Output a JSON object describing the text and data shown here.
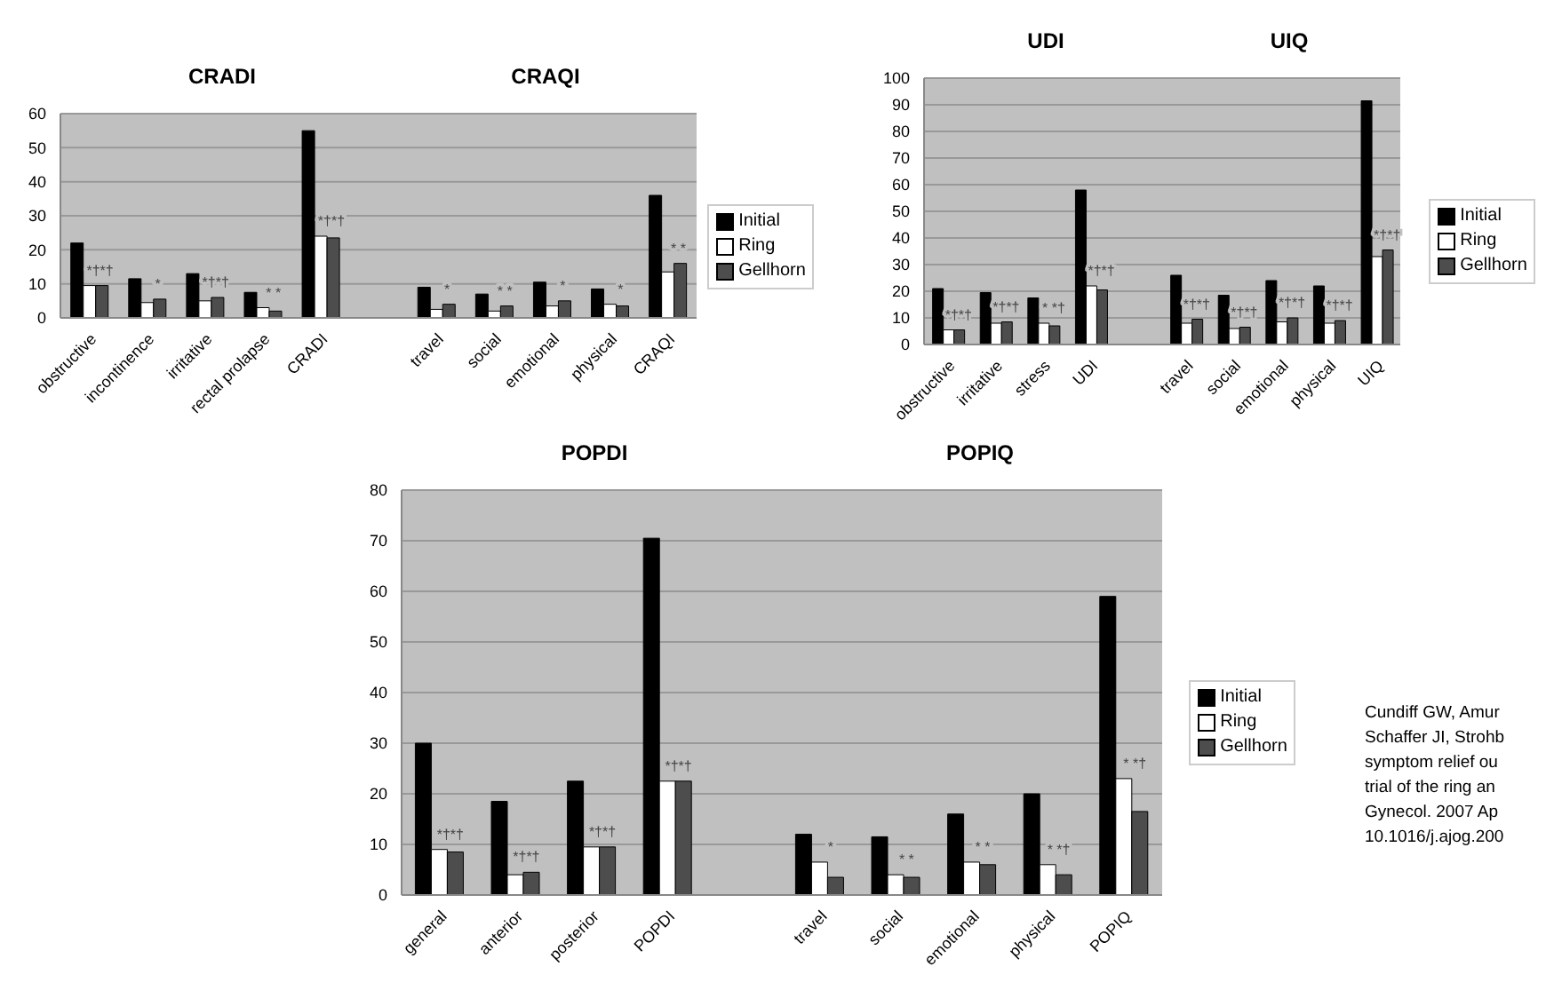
{
  "chart_data": [
    {
      "type": "bar",
      "title": "CRADI",
      "subtitle": "CRAQI",
      "categories": [
        "obstructive",
        "incontinence",
        "irritative",
        "rectal prolapse",
        "CRADI",
        null,
        "travel",
        "social",
        "emotional",
        "physical",
        "CRAQI"
      ],
      "series": [
        {
          "name": "Initial",
          "color": "#000000",
          "values": [
            22,
            11.5,
            13,
            7.5,
            55,
            null,
            9,
            7,
            10.5,
            8.5,
            36
          ]
        },
        {
          "name": "Ring",
          "color": "#ffffff",
          "values": [
            9.5,
            4.5,
            5,
            3,
            24,
            null,
            2.5,
            2,
            3.5,
            4,
            13.5
          ]
        },
        {
          "name": "Gellhorn",
          "color": "#4d4d4d",
          "values": [
            9.5,
            5.5,
            6,
            2,
            23.5,
            null,
            4,
            3.5,
            5,
            3.5,
            16
          ]
        }
      ],
      "ylim": [
        0,
        60
      ],
      "yticks": [
        0,
        10,
        20,
        30,
        40,
        50,
        60
      ],
      "grid": "y",
      "legend": "right",
      "annotations": [
        "*†*†",
        "*",
        "*†*†",
        "* *",
        "*†*†",
        "*",
        "* *",
        "*",
        "*",
        "* *"
      ]
    },
    {
      "type": "bar",
      "title": "UDI",
      "subtitle": "UIQ",
      "categories": [
        "obstructive",
        "irritative",
        "stress",
        "UDI",
        null,
        "travel",
        "social",
        "emotional",
        "physical",
        "UIQ"
      ],
      "series": [
        {
          "name": "Initial",
          "color": "#000000",
          "values": [
            21,
            19.5,
            17.5,
            58,
            null,
            26,
            18.5,
            24,
            22,
            91.5
          ]
        },
        {
          "name": "Ring",
          "color": "#ffffff",
          "values": [
            5.5,
            8,
            8,
            22,
            null,
            8,
            6,
            8.5,
            8,
            33
          ]
        },
        {
          "name": "Gellhorn",
          "color": "#4d4d4d",
          "values": [
            5.5,
            8.5,
            7,
            20.5,
            null,
            9.5,
            6.5,
            10,
            9,
            35.5
          ]
        }
      ],
      "ylim": [
        0,
        100
      ],
      "yticks": [
        0,
        10,
        20,
        30,
        40,
        50,
        60,
        70,
        80,
        90,
        100
      ],
      "grid": "y",
      "legend": "right",
      "annotations": [
        "*†*†",
        "*†*†",
        "* *†",
        "*†*†",
        "*†*†",
        "*†*†",
        "*†*†",
        "*†*†",
        "*†*†"
      ]
    },
    {
      "type": "bar",
      "title": "POPDI",
      "subtitle": "POPIQ",
      "categories": [
        "general",
        "anterior",
        "posterior",
        "POPDI",
        null,
        "travel",
        "social",
        "emotional",
        "physical",
        "POPIQ"
      ],
      "series": [
        {
          "name": "Initial",
          "color": "#000000",
          "values": [
            30,
            18.5,
            22.5,
            70.5,
            null,
            12,
            11.5,
            16,
            20,
            59
          ]
        },
        {
          "name": "Ring",
          "color": "#ffffff",
          "values": [
            9,
            4,
            9.5,
            22.5,
            null,
            6.5,
            4,
            6.5,
            6,
            23
          ]
        },
        {
          "name": "Gellhorn",
          "color": "#4d4d4d",
          "values": [
            8.5,
            4.5,
            9.5,
            22.5,
            null,
            3.5,
            3.5,
            6,
            4,
            16.5
          ]
        }
      ],
      "ylim": [
        0,
        80
      ],
      "yticks": [
        0,
        10,
        20,
        30,
        40,
        50,
        60,
        70,
        80
      ],
      "grid": "y",
      "legend": "right",
      "annotations": [
        "*†*†",
        "*†*†",
        "*†*†",
        "*†*†",
        "*",
        "* *",
        "* *",
        "* *†",
        "* *†",
        "Cundiff GW, Amur\nSchaffer JI, Strohb\nsymptom relief ou\ntrial of the ring an\nGynecol. 2007 Ap\n10.1016/j.ajog.200"
      ]
    }
  ]
}
